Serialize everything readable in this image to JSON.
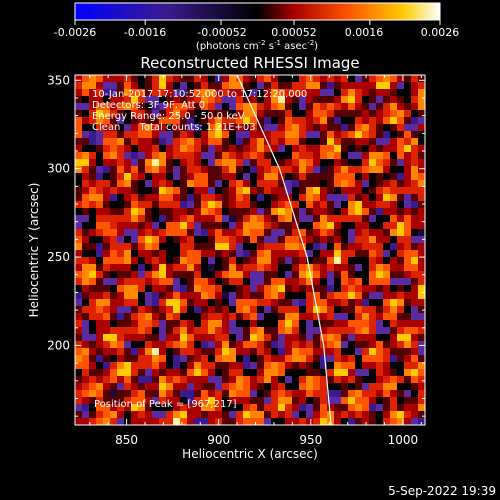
{
  "plot": {
    "title": "Reconstructed RHESSI Image",
    "info_lines": [
      "10-Jan-2017 17:10:52.000 to 17:12:20.000",
      "Detectors: 3F 9F, Att 0",
      "Energy Range: 25.0 - 50.0 keV",
      "Clean      Total counts: 1.21E+03"
    ],
    "peak_text": "Position of Peak = [967,217]",
    "footer_date": "5-Sep-2022 19:39"
  },
  "colorbar": {
    "tick_labels": [
      "-0.0026",
      "-0.0016",
      "-0.00052",
      "0.00052",
      "0.0016",
      "0.0026"
    ],
    "tick_values": [
      -0.0026,
      -0.0016,
      -0.00052,
      0.00052,
      0.0016,
      0.0026
    ],
    "range": [
      -0.0026,
      0.0026
    ],
    "units_text": "(photons cm  s  asec )",
    "units_exponents": [
      "-2",
      "-1",
      "-2"
    ]
  },
  "chart_data": {
    "type": "heatmap",
    "title": "Reconstructed RHESSI Image",
    "xlabel": "Heliocentric X (arcsec)",
    "ylabel": "Heliocentric Y (arcsec)",
    "xlim": [
      822,
      1012
    ],
    "ylim": [
      155,
      353
    ],
    "x_ticks": [
      850,
      900,
      950,
      1000
    ],
    "y_ticks": [
      200,
      250,
      300,
      350
    ],
    "x_tick_labels": [
      "850",
      "900",
      "950",
      "1000"
    ],
    "y_tick_labels": [
      "200",
      "250",
      "300",
      "350"
    ],
    "colormap": "IDL color table 3 (red temperature) with blue negative values",
    "value_range": [
      -0.0026,
      0.0026
    ],
    "peak_position": [
      967,
      217
    ],
    "limb_curve": [
      [
        910,
        353
      ],
      [
        933,
        300
      ],
      [
        948,
        250
      ],
      [
        957,
        200
      ],
      [
        961,
        155
      ]
    ]
  },
  "colors": {
    "background": "#000000",
    "foreground": "#ffffff",
    "colorbar_stops": [
      "#0000ff",
      "#3b1a8f",
      "#000000",
      "#aa0000",
      "#ff5500",
      "#ffcc00",
      "#ffffff"
    ]
  }
}
